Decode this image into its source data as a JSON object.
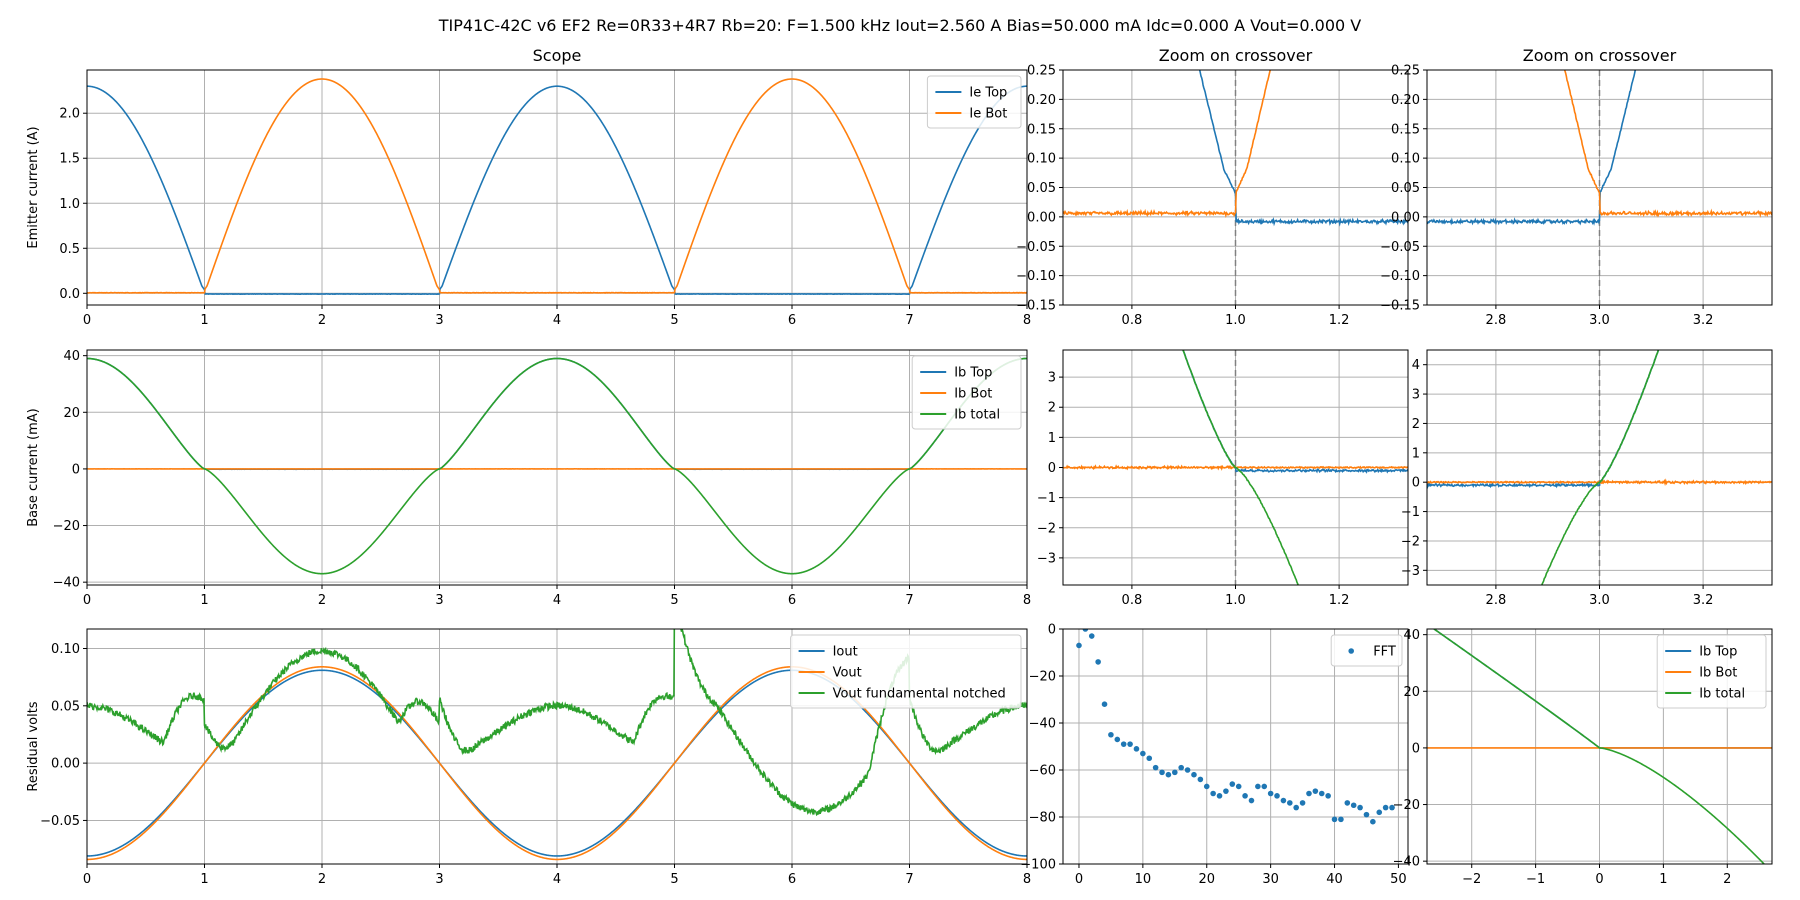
{
  "figure": {
    "title": "TIP41C-42C v6 EF2 Re=0R33+4R7 Rb=20: F=1.500 kHz Iout=2.560 A Bias=50.000 mA Idc=0.000 A Vout=0.000 V"
  },
  "colors": {
    "blue": "#1f77b4",
    "orange": "#ff7f0e",
    "green": "#2ca02c"
  },
  "chart_data": [
    {
      "id": "scope-emitter",
      "type": "line",
      "title": "Scope",
      "xlabel": "",
      "ylabel": "Emitter current (A)",
      "xlim": [
        0,
        8
      ],
      "ylim": [
        -0.13,
        2.48
      ],
      "xticks": [
        0,
        1,
        2,
        3,
        4,
        5,
        6,
        7,
        8
      ],
      "xtick_labels": [
        "0",
        "1",
        "2",
        "3",
        "4",
        "5",
        "6",
        "7",
        "8"
      ],
      "yticks": [
        0,
        0.5,
        1,
        1.5,
        2
      ],
      "ytick_labels": [
        "0.0",
        "0.5",
        "1.0",
        "1.5",
        "2.0"
      ],
      "legend": "top-right",
      "series": [
        {
          "name": "Ie Top",
          "color": "blue",
          "fn": "ie_top"
        },
        {
          "name": "Ie Bot",
          "color": "orange",
          "fn": "ie_bot"
        }
      ]
    },
    {
      "id": "zoom1-emitter",
      "type": "line",
      "title": "Zoom on crossover",
      "xlabel": "",
      "ylabel": "",
      "xlim": [
        0.667,
        1.333
      ],
      "ylim": [
        -0.15,
        0.25
      ],
      "vline": 1.0,
      "xticks": [
        0.8,
        1.0,
        1.2
      ],
      "xtick_labels": [
        "0.8",
        "1.0",
        "1.2"
      ],
      "yticks": [
        -0.15,
        -0.1,
        -0.05,
        0,
        0.05,
        0.1,
        0.15,
        0.2,
        0.25
      ],
      "ytick_labels": [
        "−0.15",
        "−0.10",
        "−0.05",
        "0.00",
        "0.05",
        "0.10",
        "0.15",
        "0.20",
        "0.25"
      ],
      "series": [
        {
          "name": "Ie Top",
          "color": "blue",
          "fn": "ie_top"
        },
        {
          "name": "Ie Bot",
          "color": "orange",
          "fn": "ie_bot"
        }
      ]
    },
    {
      "id": "zoom3-emitter",
      "type": "line",
      "title": "Zoom on crossover",
      "xlabel": "",
      "ylabel": "",
      "xlim": [
        2.667,
        3.333
      ],
      "ylim": [
        -0.15,
        0.25
      ],
      "vline": 3.0,
      "xticks": [
        2.8,
        3.0,
        3.2
      ],
      "xtick_labels": [
        "2.8",
        "3.0",
        "3.2"
      ],
      "yticks": [
        -0.15,
        -0.1,
        -0.05,
        0,
        0.05,
        0.1,
        0.15,
        0.2,
        0.25
      ],
      "ytick_labels": [
        "−0.15",
        "−0.10",
        "−0.05",
        "0.00",
        "0.05",
        "0.10",
        "0.15",
        "0.20",
        "0.25"
      ],
      "series": [
        {
          "name": "Ie Top",
          "color": "blue",
          "fn": "ie_top"
        },
        {
          "name": "Ie Bot",
          "color": "orange",
          "fn": "ie_bot"
        }
      ]
    },
    {
      "id": "scope-base",
      "type": "line",
      "title": "",
      "xlabel": "",
      "ylabel": "Base current (mA)",
      "xlim": [
        0,
        8
      ],
      "ylim": [
        -41,
        42
      ],
      "xticks": [
        0,
        1,
        2,
        3,
        4,
        5,
        6,
        7,
        8
      ],
      "xtick_labels": [
        "0",
        "1",
        "2",
        "3",
        "4",
        "5",
        "6",
        "7",
        "8"
      ],
      "yticks": [
        -40,
        -20,
        0,
        20,
        40
      ],
      "ytick_labels": [
        "−40",
        "−20",
        "0",
        "20",
        "40"
      ],
      "legend": "top-right",
      "series": [
        {
          "name": "Ib Top",
          "color": "blue",
          "fn": "ib_top"
        },
        {
          "name": "Ib Bot",
          "color": "orange",
          "fn": "ib_bot"
        },
        {
          "name": "Ib total",
          "color": "green",
          "fn": "ib_total"
        }
      ]
    },
    {
      "id": "zoom1-base",
      "type": "line",
      "title": "",
      "xlabel": "",
      "ylabel": "",
      "xlim": [
        0.667,
        1.333
      ],
      "ylim": [
        -3.9,
        3.9
      ],
      "vline": 1.0,
      "xticks": [
        0.8,
        1.0,
        1.2
      ],
      "xtick_labels": [
        "0.8",
        "1.0",
        "1.2"
      ],
      "yticks": [
        -3,
        -2,
        -1,
        0,
        1,
        2,
        3
      ],
      "ytick_labels": [
        "−3",
        "−2",
        "−1",
        "0",
        "1",
        "2",
        "3"
      ],
      "series": [
        {
          "name": "Ib Top",
          "color": "blue",
          "fn": "ib_top"
        },
        {
          "name": "Ib Bot",
          "color": "orange",
          "fn": "ib_bot"
        },
        {
          "name": "Ib total",
          "color": "green",
          "fn": "ib_total"
        }
      ]
    },
    {
      "id": "zoom3-base",
      "type": "line",
      "title": "",
      "xlabel": "",
      "ylabel": "",
      "xlim": [
        2.667,
        3.333
      ],
      "ylim": [
        -3.5,
        4.5
      ],
      "vline": 3.0,
      "xticks": [
        2.8,
        3.0,
        3.2
      ],
      "xtick_labels": [
        "2.8",
        "3.0",
        "3.2"
      ],
      "yticks": [
        -3,
        -2,
        -1,
        0,
        1,
        2,
        3,
        4
      ],
      "ytick_labels": [
        "−3",
        "−2",
        "−1",
        "0",
        "1",
        "2",
        "3",
        "4"
      ],
      "series": [
        {
          "name": "Ib Top",
          "color": "blue",
          "fn": "ib_top"
        },
        {
          "name": "Ib Bot",
          "color": "orange",
          "fn": "ib_bot"
        },
        {
          "name": "Ib total",
          "color": "green",
          "fn": "ib_total"
        }
      ]
    },
    {
      "id": "scope-residual",
      "type": "line",
      "title": "",
      "xlabel": "",
      "ylabel": "Residual volts",
      "xlim": [
        0,
        8
      ],
      "ylim": [
        -0.088,
        0.117
      ],
      "xticks": [
        0,
        1,
        2,
        3,
        4,
        5,
        6,
        7,
        8
      ],
      "xtick_labels": [
        "0",
        "1",
        "2",
        "3",
        "4",
        "5",
        "6",
        "7",
        "8"
      ],
      "yticks": [
        -0.05,
        0,
        0.05,
        0.1
      ],
      "ytick_labels": [
        "−0.05",
        "0.00",
        "0.05",
        "0.10"
      ],
      "legend": "top-right",
      "series": [
        {
          "name": "Iout",
          "color": "blue",
          "fn": "iout"
        },
        {
          "name": "Vout",
          "color": "orange",
          "fn": "vout"
        },
        {
          "name": "Vout fundamental notched",
          "color": "green",
          "fn": "notched"
        }
      ]
    },
    {
      "id": "fft",
      "type": "scatter",
      "title": "",
      "xlabel": "",
      "ylabel": "",
      "xlim": [
        -2.5,
        51.5
      ],
      "ylim": [
        -100,
        0
      ],
      "xticks": [
        0,
        10,
        20,
        30,
        40,
        50
      ],
      "xtick_labels": [
        "0",
        "10",
        "20",
        "30",
        "40",
        "50"
      ],
      "yticks": [
        -100,
        -80,
        -60,
        -40,
        -20,
        0
      ],
      "ytick_labels": [
        "−100",
        "−80",
        "−60",
        "−40",
        "−20",
        "0"
      ],
      "legend": "top-right",
      "series": [
        {
          "name": "FFT",
          "color": "blue",
          "x": [
            0,
            1,
            2,
            3,
            4,
            5,
            6,
            7,
            8,
            9,
            10,
            11,
            12,
            13,
            14,
            15,
            16,
            17,
            18,
            19,
            20,
            21,
            22,
            23,
            24,
            25,
            26,
            27,
            28,
            29,
            30,
            31,
            32,
            33,
            34,
            35,
            36,
            37,
            38,
            39,
            40,
            41,
            42,
            43,
            44,
            45,
            46,
            47,
            48,
            49
          ],
          "y": [
            -7,
            0,
            -3,
            -14,
            -32,
            -45,
            -47,
            -49,
            -49,
            -51,
            -53,
            -55,
            -59,
            -61,
            -62,
            -61,
            -59,
            -60,
            -62,
            -64,
            -67,
            -70,
            -71,
            -69,
            -66,
            -67,
            -71,
            -73,
            -67,
            -67,
            -70,
            -71,
            -73,
            -74,
            -76,
            -74,
            -70,
            -69,
            -70,
            -71,
            -81,
            -81,
            -74,
            -75,
            -76,
            -79,
            -82,
            -78,
            -76,
            -76
          ]
        }
      ]
    },
    {
      "id": "transfer",
      "type": "line",
      "title": "",
      "xlabel": "",
      "ylabel": "",
      "xlim": [
        -2.7,
        2.7
      ],
      "ylim": [
        -41,
        42
      ],
      "xticks": [
        -2,
        -1,
        0,
        1,
        2
      ],
      "xtick_labels": [
        "−2",
        "−1",
        "0",
        "1",
        "2"
      ],
      "yticks": [
        -40,
        -20,
        0,
        20,
        40
      ],
      "ytick_labels": [
        "−40",
        "−20",
        "0",
        "20",
        "40"
      ],
      "legend": "top-right",
      "series": [
        {
          "name": "Ib Top",
          "color": "blue",
          "fn": "tr_top"
        },
        {
          "name": "Ib Bot",
          "color": "orange",
          "fn": "tr_bot"
        },
        {
          "name": "Ib total",
          "color": "green",
          "fn": "tr_total"
        }
      ]
    }
  ]
}
